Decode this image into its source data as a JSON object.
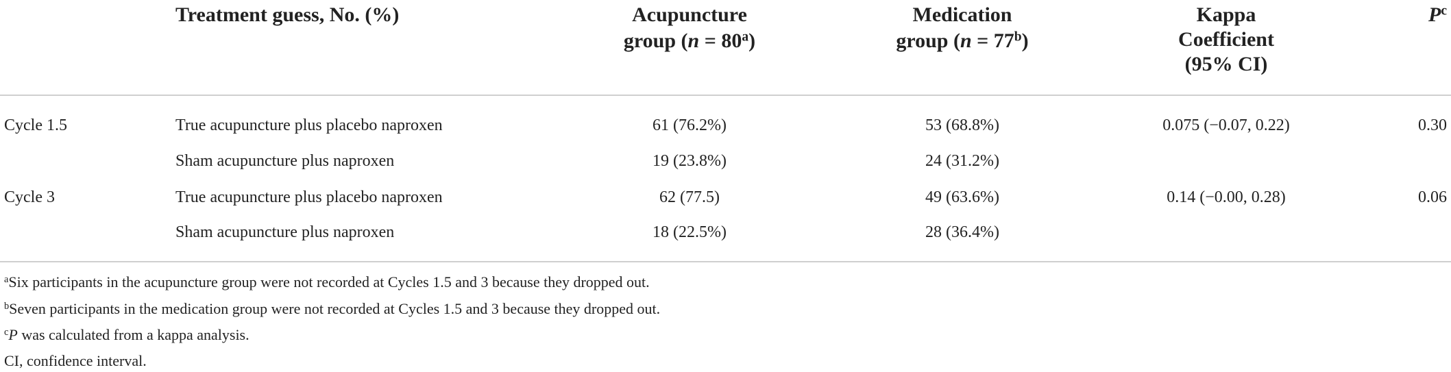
{
  "header": {
    "guess": "Treatment guess, No. (%)",
    "acupuncture": {
      "line1": "Acupuncture",
      "pre": "group (",
      "var": "n",
      "eq": " = 80",
      "sup": "a",
      "post": ")"
    },
    "medication": {
      "line1": "Medication",
      "pre": "group (",
      "var": "n",
      "eq": " = 77",
      "sup": "b",
      "post": ")"
    },
    "kappa": [
      "Kappa",
      "Coefficient",
      "(95% CI)"
    ],
    "p": {
      "var": "P",
      "sup": "c"
    }
  },
  "table": {
    "rows": [
      {
        "cycle": "Cycle 1.5",
        "guess": "True acupuncture plus placebo naproxen",
        "acupuncture": "61 (76.2%)",
        "medication": "53 (68.8%)",
        "kappa": "0.075 (−0.07, 0.22)",
        "p": "0.30"
      },
      {
        "guess": "Sham acupuncture plus naproxen",
        "acupuncture": "19 (23.8%)",
        "medication": "24 (31.2%)"
      },
      {
        "cycle": "Cycle 3",
        "guess": "True acupuncture plus placebo naproxen",
        "acupuncture": "62 (77.5)",
        "medication": "49 (63.6%)",
        "kappa": "0.14 (−0.00, 0.28)",
        "p": "0.06"
      },
      {
        "guess": "Sham acupuncture plus naproxen",
        "acupuncture": "18 (22.5%)",
        "medication": "28 (36.4%)"
      }
    ]
  },
  "footnotes": [
    {
      "sup": "a",
      "text": "Six participants in the acupuncture group were not recorded at Cycles 1.5 and 3 because they dropped out."
    },
    {
      "sup": "b",
      "text": "Seven participants in the medication group were not recorded at Cycles 1.5 and 3 because they dropped out."
    },
    {
      "sup": "c",
      "var": "P",
      "text": " was calculated from a kappa analysis."
    },
    {
      "text": "CI, confidence interval."
    }
  ]
}
